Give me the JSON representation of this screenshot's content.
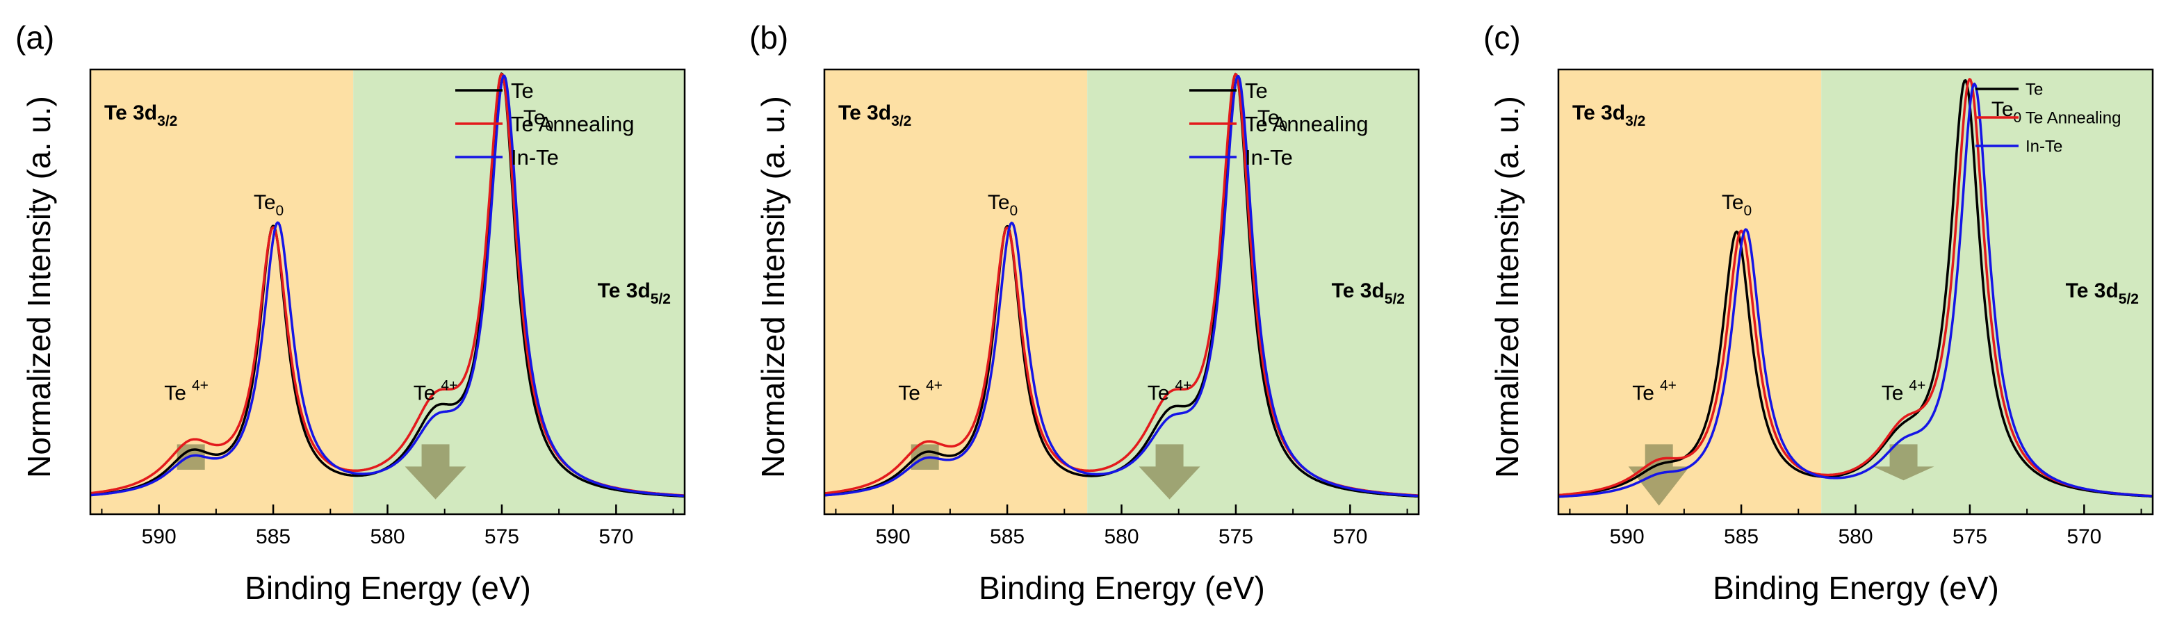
{
  "figure": {
    "panels": [
      {
        "label": "(a)"
      },
      {
        "label": "(b)"
      },
      {
        "label": "(c)"
      }
    ]
  },
  "colors": {
    "te": "#000000",
    "te_annealing": "#e31a1c",
    "in_te": "#1515e6",
    "region_3d32": "#fde0a4",
    "region_3d52": "#d2e9bf",
    "marker": "#8c8c5a"
  },
  "chart_data": [
    {
      "type": "line",
      "panel": "(a)",
      "xlabel": "Binding Energy (eV)",
      "ylabel": "Normalized Intensity (a. u.)",
      "xlim": [
        593,
        567
      ],
      "ylim": [
        0,
        1.05
      ],
      "x_reversed": true,
      "xticks": [
        590,
        585,
        580,
        575,
        570
      ],
      "regions": [
        {
          "name": "Te 3d",
          "sub": "3/2",
          "from": 593,
          "to": 581.5
        },
        {
          "name": "Te 3d",
          "sub": "5/2",
          "from": 581.5,
          "to": 567
        }
      ],
      "legend": {
        "position": "top-right",
        "size": "large"
      },
      "annotations": [
        {
          "base": "Te",
          "sub": "0",
          "sup": "",
          "x": 585.2,
          "y": 0.72
        },
        {
          "base": "Te",
          "sub": "0",
          "sup": "",
          "x": 573.4,
          "y": 0.92
        },
        {
          "base": "Te",
          "sub": "",
          "sup": "4+",
          "x": 588.8,
          "y": 0.27
        },
        {
          "base": "Te",
          "sub": "",
          "sup": "4+",
          "x": 577.9,
          "y": 0.27
        }
      ],
      "markers": [
        {
          "x": 588.6,
          "top": 0.165,
          "bottom": 0.105,
          "shape": "square"
        },
        {
          "x": 577.9,
          "top": 0.165,
          "bottom": 0.035,
          "shape": "arrow"
        }
      ],
      "series": [
        {
          "name": "Te",
          "peaks": [
            [
              588.6,
              0.09,
              1.3
            ],
            [
              585.0,
              0.63,
              0.75
            ],
            [
              577.9,
              0.155,
              1.3
            ],
            [
              575.0,
              0.98,
              0.75
            ]
          ]
        },
        {
          "name": "Te Annealing",
          "peaks": [
            [
              588.6,
              0.11,
              1.4
            ],
            [
              585.0,
              0.62,
              0.8
            ],
            [
              577.9,
              0.18,
              1.4
            ],
            [
              575.0,
              0.97,
              0.8
            ]
          ]
        },
        {
          "name": "In-Te",
          "peaks": [
            [
              588.6,
              0.075,
              1.3
            ],
            [
              584.8,
              0.64,
              0.8
            ],
            [
              577.9,
              0.13,
              1.3
            ],
            [
              574.9,
              0.98,
              0.8
            ]
          ]
        }
      ]
    },
    {
      "type": "line",
      "panel": "(b)",
      "xlabel": "Binding Energy (eV)",
      "ylabel": "Normalized Intensity (a. u.)",
      "xlim": [
        593,
        567
      ],
      "ylim": [
        0,
        1.05
      ],
      "x_reversed": true,
      "xticks": [
        590,
        585,
        580,
        575,
        570
      ],
      "regions": [
        {
          "name": "Te 3d",
          "sub": "3/2",
          "from": 593,
          "to": 581.5
        },
        {
          "name": "Te 3d",
          "sub": "5/2",
          "from": 581.5,
          "to": 567
        }
      ],
      "legend": {
        "position": "top-right",
        "size": "large"
      },
      "annotations": [
        {
          "base": "Te",
          "sub": "0",
          "sup": "",
          "x": 585.2,
          "y": 0.72
        },
        {
          "base": "Te",
          "sub": "0",
          "sup": "",
          "x": 573.4,
          "y": 0.92
        },
        {
          "base": "Te",
          "sub": "",
          "sup": "4+",
          "x": 588.8,
          "y": 0.27
        },
        {
          "base": "Te",
          "sub": "",
          "sup": "4+",
          "x": 577.9,
          "y": 0.27
        }
      ],
      "markers": [
        {
          "x": 588.6,
          "top": 0.165,
          "bottom": 0.105,
          "shape": "square"
        },
        {
          "x": 577.9,
          "top": 0.165,
          "bottom": 0.035,
          "shape": "arrow"
        }
      ],
      "series": [
        {
          "name": "Te",
          "peaks": [
            [
              588.6,
              0.085,
              1.3
            ],
            [
              585.0,
              0.63,
              0.75
            ],
            [
              577.9,
              0.15,
              1.3
            ],
            [
              575.0,
              0.98,
              0.75
            ]
          ]
        },
        {
          "name": "Te Annealing",
          "peaks": [
            [
              588.6,
              0.105,
              1.4
            ],
            [
              585.0,
              0.62,
              0.8
            ],
            [
              577.9,
              0.18,
              1.4
            ],
            [
              575.0,
              0.97,
              0.8
            ]
          ]
        },
        {
          "name": "In-Te",
          "peaks": [
            [
              588.6,
              0.07,
              1.3
            ],
            [
              584.8,
              0.64,
              0.8
            ],
            [
              577.9,
              0.125,
              1.3
            ],
            [
              574.9,
              0.98,
              0.8
            ]
          ]
        }
      ]
    },
    {
      "type": "line",
      "panel": "(c)",
      "xlabel": "Binding Energy (eV)",
      "ylabel": "Normalized Intensity (a. u.)",
      "xlim": [
        593,
        567
      ],
      "ylim": [
        0,
        1.05
      ],
      "x_reversed": true,
      "xticks": [
        590,
        585,
        580,
        575,
        570
      ],
      "regions": [
        {
          "name": "Te 3d",
          "sub": "3/2",
          "from": 593,
          "to": 581.5
        },
        {
          "name": "Te 3d",
          "sub": "5/2",
          "from": 581.5,
          "to": 567
        }
      ],
      "legend": {
        "position": "top-right",
        "size": "small"
      },
      "annotations": [
        {
          "base": "Te",
          "sub": "0",
          "sup": "",
          "x": 585.2,
          "y": 0.72
        },
        {
          "base": "Te",
          "sub": "0",
          "sup": "",
          "x": 573.4,
          "y": 0.94
        },
        {
          "base": "Te",
          "sub": "",
          "sup": "4+",
          "x": 588.8,
          "y": 0.27
        },
        {
          "base": "Te",
          "sub": "",
          "sup": "4+",
          "x": 577.9,
          "y": 0.27
        }
      ],
      "markers": [
        {
          "x": 588.6,
          "top": 0.165,
          "bottom": 0.02,
          "shape": "arrow"
        },
        {
          "x": 577.9,
          "top": 0.165,
          "bottom": 0.08,
          "shape": "arrow"
        }
      ],
      "series": [
        {
          "name": "Te",
          "peaks": [
            [
              588.6,
              0.05,
              1.4
            ],
            [
              585.2,
              0.62,
              0.8
            ],
            [
              578.0,
              0.1,
              1.4
            ],
            [
              575.2,
              0.97,
              0.8
            ]
          ]
        },
        {
          "name": "Te Annealing",
          "peaks": [
            [
              588.6,
              0.065,
              1.4
            ],
            [
              585.0,
              0.62,
              0.8
            ],
            [
              577.9,
              0.12,
              1.4
            ],
            [
              575.0,
              0.97,
              0.8
            ]
          ]
        },
        {
          "name": "In-Te",
          "peaks": [
            [
              588.6,
              0.035,
              1.3
            ],
            [
              584.8,
              0.63,
              0.8
            ],
            [
              577.9,
              0.08,
              1.3
            ],
            [
              574.8,
              0.97,
              0.8
            ]
          ]
        }
      ]
    }
  ]
}
